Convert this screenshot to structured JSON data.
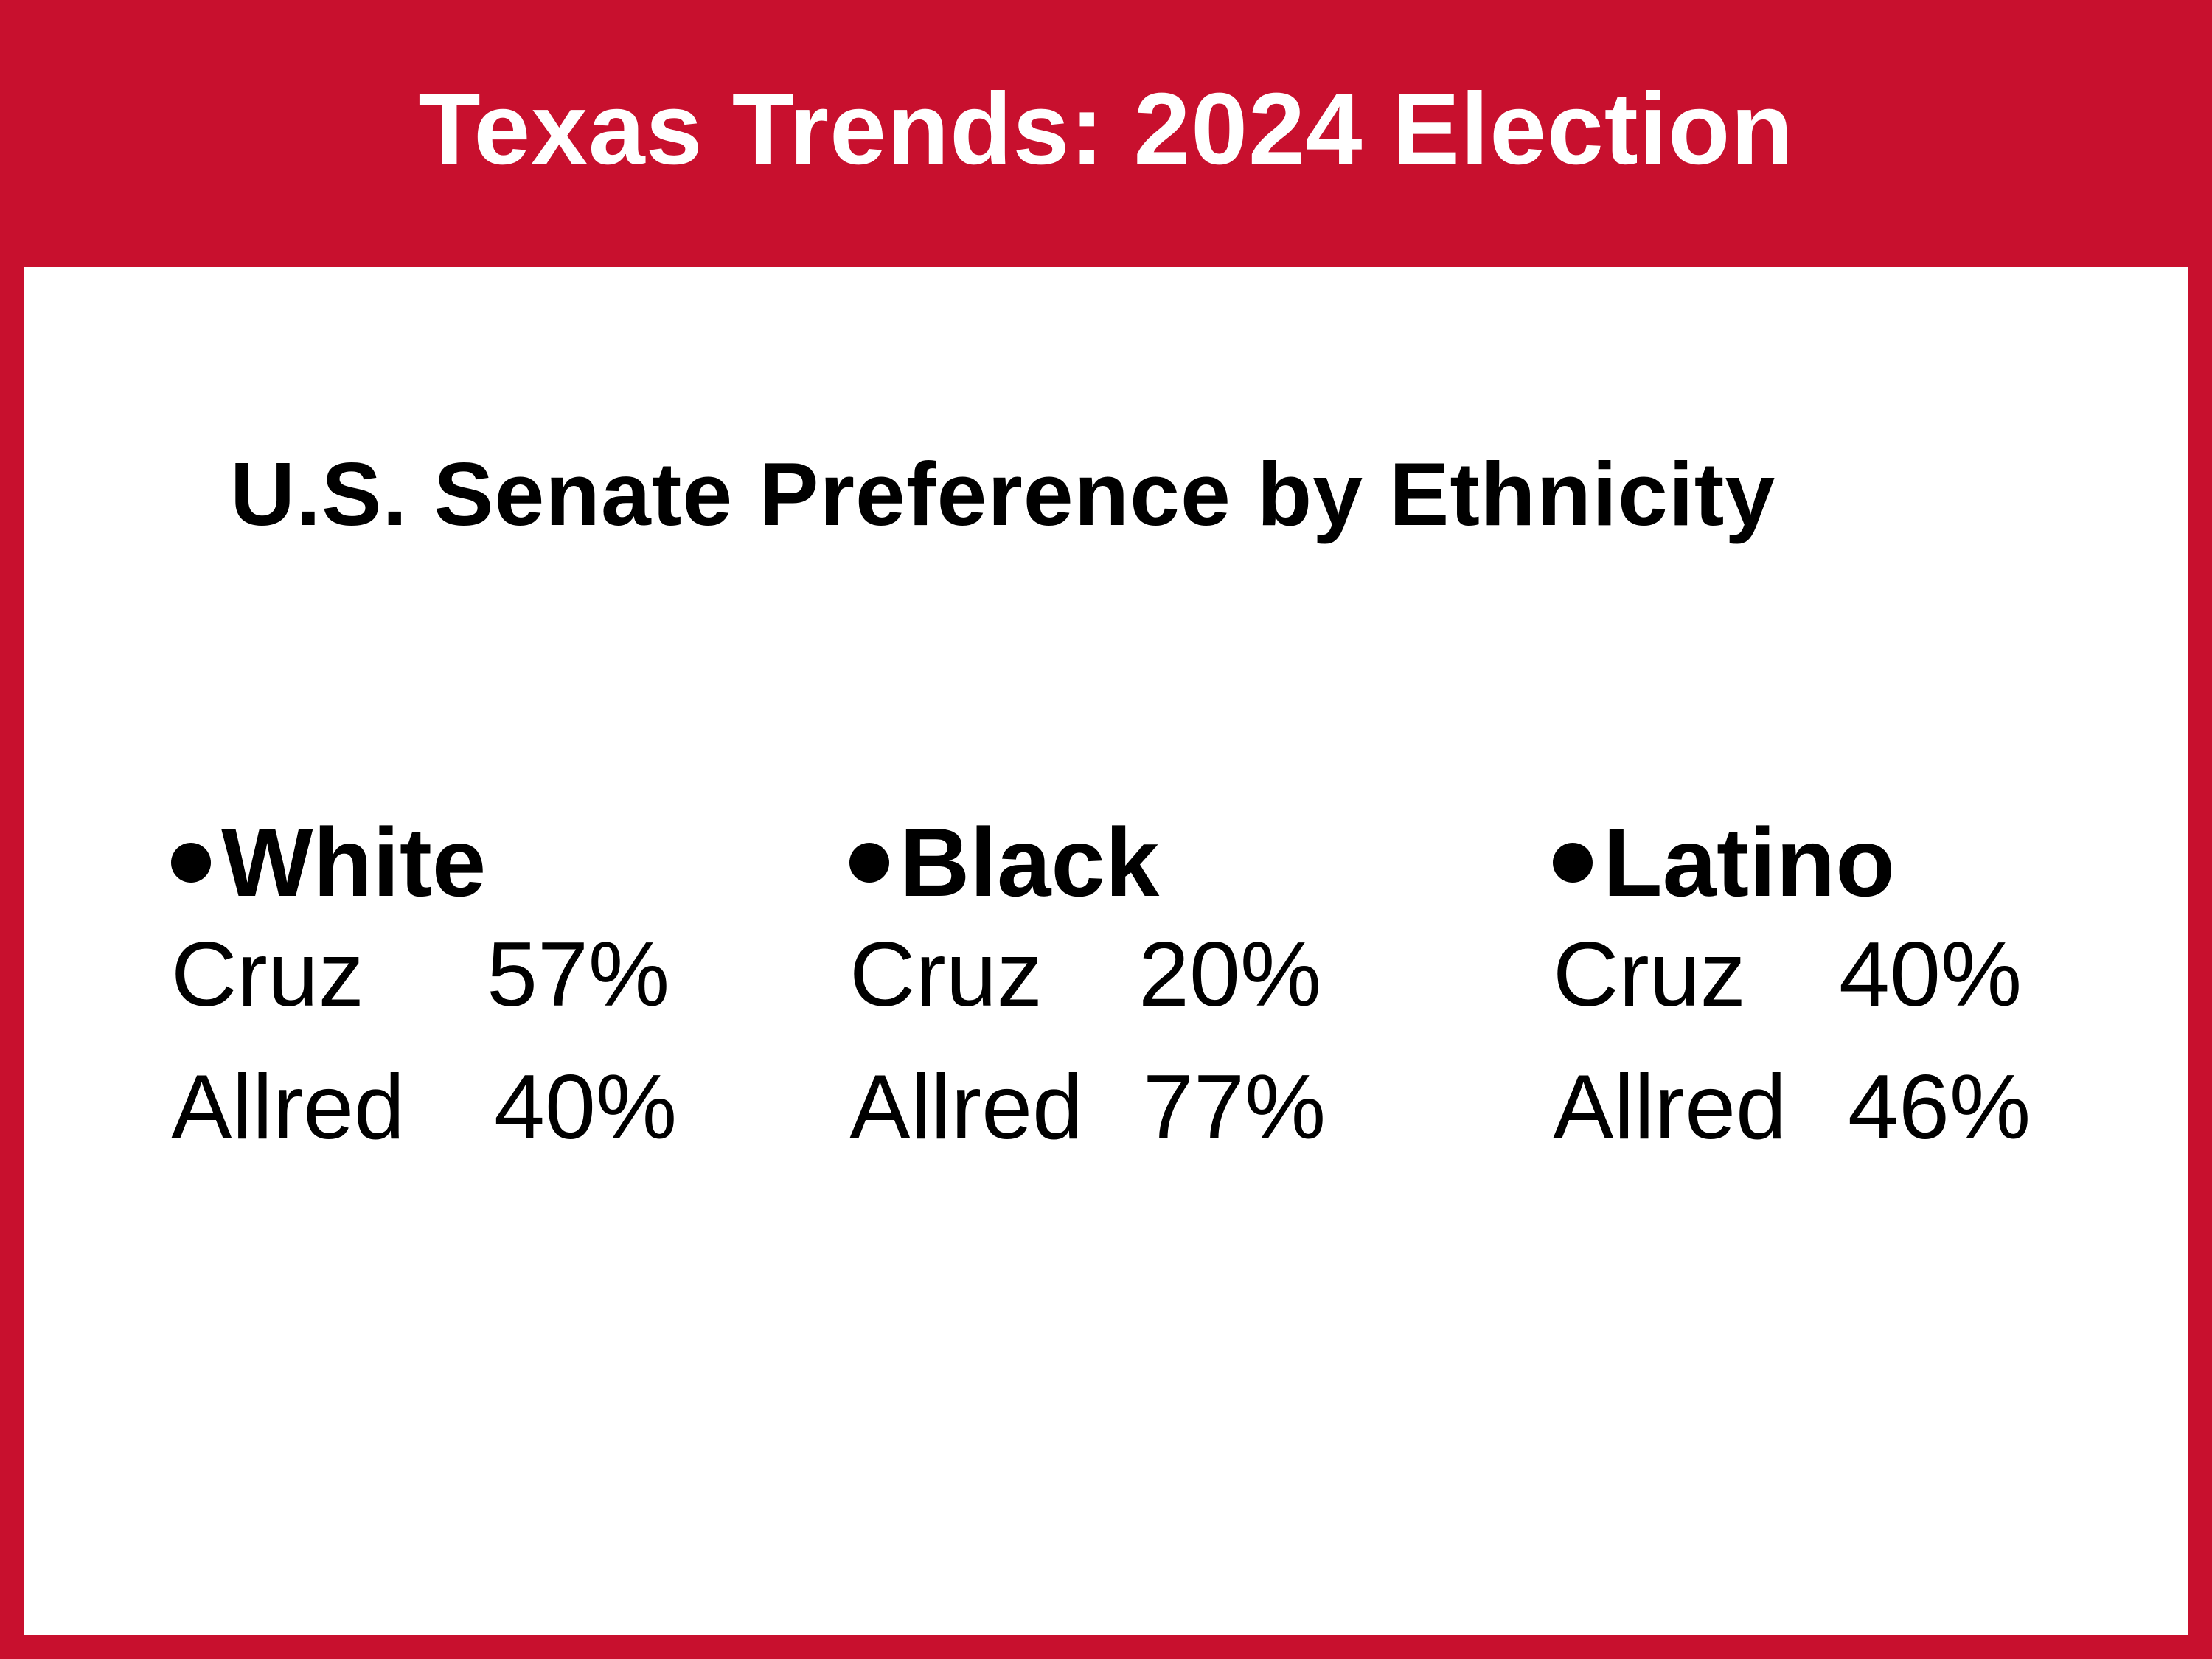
{
  "header": {
    "title": "Texas Trends: 2024 Election"
  },
  "subtitle": "U.S. Senate Preference by Ethnicity",
  "groups": [
    {
      "name": "White",
      "rows": [
        {
          "candidate": "Cruz",
          "percent": "57%"
        },
        {
          "candidate": "Allred",
          "percent": "40%"
        }
      ]
    },
    {
      "name": "Black",
      "rows": [
        {
          "candidate": "Cruz",
          "percent": "20%"
        },
        {
          "candidate": "Allred",
          "percent": "77%"
        }
      ]
    },
    {
      "name": "Latino",
      "rows": [
        {
          "candidate": "Cruz",
          "percent": "40%"
        },
        {
          "candidate": "Allred",
          "percent": "46%"
        }
      ]
    }
  ],
  "colors": {
    "accent": "#c8102e",
    "text": "#000000",
    "background": "#ffffff"
  }
}
